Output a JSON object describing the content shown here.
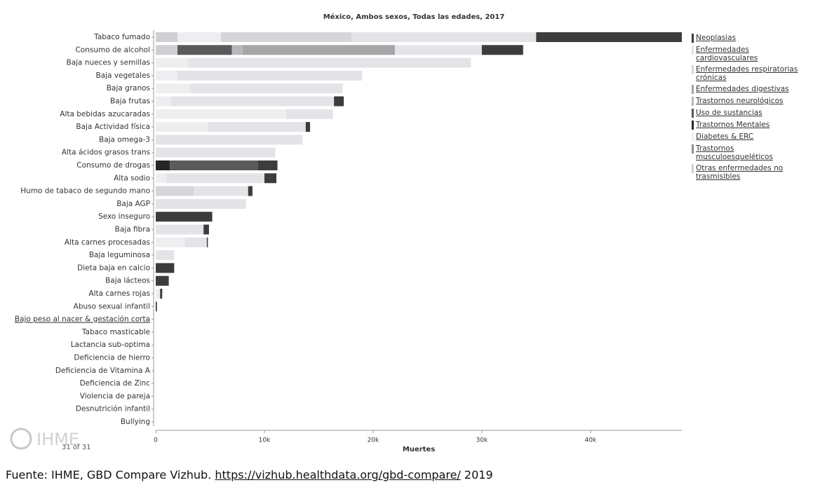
{
  "chart_data": {
    "type": "stacked-barh",
    "title": "México, Ambos sexos, Todas las edades, 2017",
    "x_label": "Muertes",
    "categories": [
      "Tabaco fumado",
      "Consumo de alcohol",
      "Baja nueces y semillas",
      "Baja vegetales",
      "Baja granos",
      "Baja frutas",
      "Alta bebidas azucaradas",
      "Baja Actividad física",
      "Baja omega-3",
      "Alta ácidos grasos trans",
      "Consumo de drogas",
      "Alta sodio",
      "Humo de tabaco de segundo mano",
      "Baja AGP",
      "Sexo inseguro",
      "Baja fibra",
      "Alta carnes procesadas",
      "Baja leguminosa",
      "Dieta baja en calcio",
      "Baja lácteos",
      "Alta carnes rojas",
      "Abuso sexual infantil",
      "Bajo peso al nacer & gestación corta",
      "Tabaco masticable",
      "Lactancia sub-optima",
      "Deficiencia de hierro",
      "Deficiencia de Vitamina A",
      "Deficiencia de Zinc",
      "Violencia de pareja",
      "Desnutrición infantil",
      "Bullying"
    ],
    "series": [
      {
        "name": "Neoplasias",
        "color": "#3c3c3c",
        "values": [
          13400,
          3800,
          0,
          0,
          0,
          900,
          0,
          400,
          0,
          0,
          1800,
          1100,
          400,
          0,
          5200,
          500,
          100,
          0,
          1700,
          1200,
          200,
          0,
          0,
          0,
          0,
          0,
          0,
          0,
          0,
          0,
          0
        ]
      },
      {
        "name": "Enfermedades cardiovasculares",
        "color": "#e4e4e8",
        "values": [
          17000,
          8000,
          26000,
          17000,
          14000,
          15000,
          4300,
          9000,
          13500,
          11000,
          0,
          9000,
          5000,
          8300,
          0,
          4400,
          2000,
          1700,
          0,
          0,
          0,
          0,
          0,
          0,
          0,
          0,
          0,
          0,
          0,
          0,
          0
        ]
      },
      {
        "name": "Enfermedades respiratorias crónicas",
        "color": "#d6d6da",
        "values": [
          12000,
          0,
          0,
          0,
          0,
          0,
          0,
          0,
          0,
          0,
          0,
          0,
          3500,
          0,
          0,
          0,
          0,
          0,
          0,
          0,
          0,
          0,
          0,
          0,
          0,
          0,
          0,
          0,
          0,
          0,
          0
        ]
      },
      {
        "name": "Enfermedades digestivas",
        "color": "#a6a6a8",
        "values": [
          0,
          14000,
          0,
          0,
          0,
          0,
          0,
          0,
          0,
          0,
          0,
          0,
          0,
          0,
          0,
          0,
          0,
          0,
          0,
          0,
          0,
          0,
          0,
          0,
          0,
          0,
          0,
          0,
          0,
          0,
          0
        ]
      },
      {
        "name": "Trastornos neurológicos",
        "color": "#b8b8bc",
        "values": [
          0,
          1000,
          0,
          0,
          0,
          0,
          0,
          0,
          0,
          0,
          0,
          0,
          0,
          0,
          0,
          0,
          0,
          0,
          0,
          0,
          0,
          0,
          0,
          0,
          0,
          0,
          0,
          0,
          0,
          0,
          0
        ]
      },
      {
        "name": "Uso de sustancias",
        "color": "#5a5a5c",
        "values": [
          0,
          5000,
          0,
          0,
          0,
          0,
          0,
          0,
          0,
          0,
          8100,
          0,
          0,
          0,
          0,
          0,
          0,
          0,
          0,
          0,
          0,
          0,
          0,
          0,
          0,
          0,
          0,
          0,
          0,
          0,
          0
        ]
      },
      {
        "name": "Trastornos Mentales",
        "color": "#262626",
        "values": [
          0,
          0,
          0,
          0,
          0,
          0,
          0,
          0,
          0,
          0,
          1300,
          0,
          0,
          0,
          0,
          0,
          0,
          0,
          0,
          0,
          0,
          100,
          0,
          0,
          0,
          0,
          0,
          0,
          0,
          0,
          0
        ]
      },
      {
        "name": "Diabetes & ERC",
        "color": "#eeeef1",
        "values": [
          4000,
          0,
          3000,
          2000,
          3200,
          1400,
          12000,
          4800,
          0,
          0,
          0,
          1000,
          0,
          0,
          0,
          0,
          2700,
          0,
          0,
          0,
          400,
          0,
          0,
          0,
          0,
          0,
          0,
          0,
          0,
          0,
          0
        ]
      },
      {
        "name": "Trastornos musculoesqueléticos",
        "color": "#8e8e90",
        "values": [
          0,
          0,
          0,
          0,
          0,
          0,
          0,
          0,
          0,
          0,
          0,
          0,
          0,
          0,
          0,
          0,
          0,
          0,
          0,
          0,
          0,
          0,
          0,
          0,
          0,
          0,
          0,
          0,
          0,
          0,
          0
        ]
      },
      {
        "name": "Otras enfermedades no trasmisibles",
        "color": "#cfcfd3",
        "values": [
          2000,
          2000,
          0,
          0,
          0,
          0,
          0,
          0,
          0,
          0,
          0,
          0,
          0,
          0,
          0,
          0,
          0,
          0,
          0,
          0,
          0,
          0,
          0,
          0,
          0,
          0,
          0,
          0,
          0,
          0,
          0
        ]
      }
    ],
    "xlim": [
      0,
      48400
    ],
    "xticks": [
      0,
      {
        "value": 10000,
        "label": "10k"
      },
      {
        "value": 20000,
        "label": "20k"
      },
      {
        "value": 30000,
        "label": "30k"
      },
      {
        "value": 40000,
        "label": "40k"
      }
    ],
    "grid": false
  },
  "logo_text": "IHME",
  "page_indicator": "31 of 31",
  "source_prefix": "Fuente: IHME, GBD Compare Vizhub.",
  "source_url": "https://vizhub.healthdata.org/gbd-compare/",
  "source_year": "2019"
}
